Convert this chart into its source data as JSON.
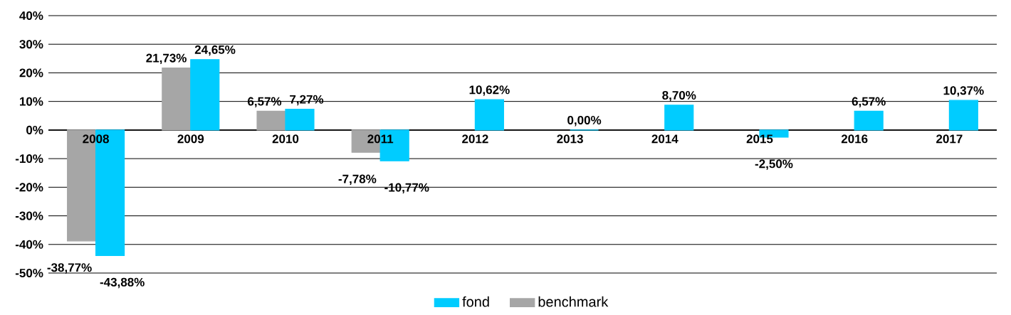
{
  "chart_data": {
    "type": "bar",
    "categories": [
      "2008",
      "2009",
      "2010",
      "2011",
      "2012",
      "2013",
      "2014",
      "2015",
      "2016",
      "2017"
    ],
    "series": [
      {
        "name": "benchmark",
        "color": "#a6a6a6",
        "values": [
          -38.77,
          21.73,
          6.57,
          -7.78,
          null,
          null,
          null,
          null,
          null,
          null
        ],
        "value_labels": [
          "-38,77%",
          "21,73%",
          "6,57%",
          "-7,78%",
          null,
          null,
          null,
          null,
          null,
          null
        ]
      },
      {
        "name": "fond",
        "color": "#00ccff",
        "values": [
          -43.88,
          24.65,
          7.27,
          -10.77,
          10.62,
          0.0,
          8.7,
          -2.5,
          6.57,
          10.37
        ],
        "value_labels": [
          "-43,88%",
          "24,65%",
          "7,27%",
          "-10,77%",
          "10,62%",
          "0,00%",
          "8,70%",
          "-2,50%",
          "6,57%",
          "10,37%"
        ]
      }
    ],
    "ylim": [
      -50,
      40
    ],
    "yticks": [
      {
        "value": -50,
        "label": "-50%"
      },
      {
        "value": -40,
        "label": "-40%"
      },
      {
        "value": -30,
        "label": "-30%"
      },
      {
        "value": -20,
        "label": "-20%"
      },
      {
        "value": -10,
        "label": "-10%"
      },
      {
        "value": 0,
        "label": "0%"
      },
      {
        "value": 10,
        "label": "10%"
      },
      {
        "value": 20,
        "label": "20%"
      },
      {
        "value": 30,
        "label": "30%"
      },
      {
        "value": 40,
        "label": "40%"
      }
    ],
    "grid": "y",
    "legend": "bottom"
  }
}
